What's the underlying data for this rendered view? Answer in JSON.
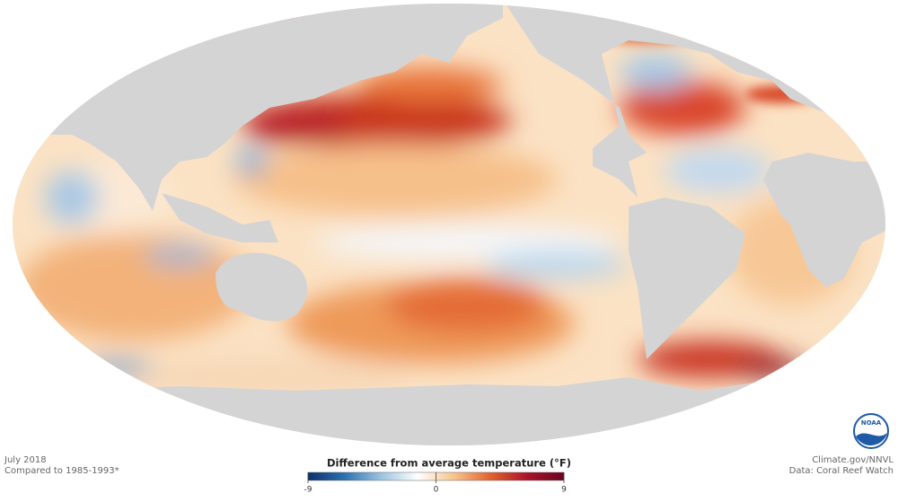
{
  "header": {
    "date": "July 2018",
    "baseline": "Compared to 1985-1993*"
  },
  "legend": {
    "title": "Difference from average temperature (°F)",
    "ticks": [
      -9,
      0,
      9
    ],
    "colors": [
      "#0d2f6b",
      "#2c72b0",
      "#9cc4e0",
      "#ffffff",
      "#f7c48a",
      "#e0622e",
      "#a9132a",
      "#6b0321"
    ]
  },
  "credits": {
    "source": "Climate.gov/NNVL",
    "data": "Data: Coral Reef Watch",
    "logo": "NOAA"
  }
}
